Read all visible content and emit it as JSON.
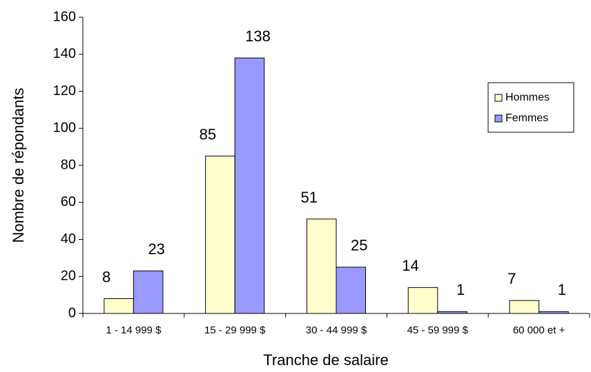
{
  "chart_data": {
    "type": "bar",
    "xlabel": "Tranche de salaire",
    "ylabel": "Nombre de répondants",
    "categories": [
      "1 - 14 999 $",
      "15 - 29 999 $",
      "30 - 44 999 $",
      "45 - 59 999 $",
      "60 000 et +"
    ],
    "series": [
      {
        "name": "Hommes",
        "color": "#ffffcc",
        "values": [
          8,
          85,
          51,
          14,
          7
        ]
      },
      {
        "name": "Femmes",
        "color": "#9999ff",
        "values": [
          23,
          138,
          25,
          1,
          1
        ]
      }
    ],
    "ylim": [
      0,
      160
    ],
    "yticks": [
      0,
      20,
      40,
      60,
      80,
      100,
      120,
      140,
      160
    ],
    "grid": false,
    "legend": "right"
  }
}
